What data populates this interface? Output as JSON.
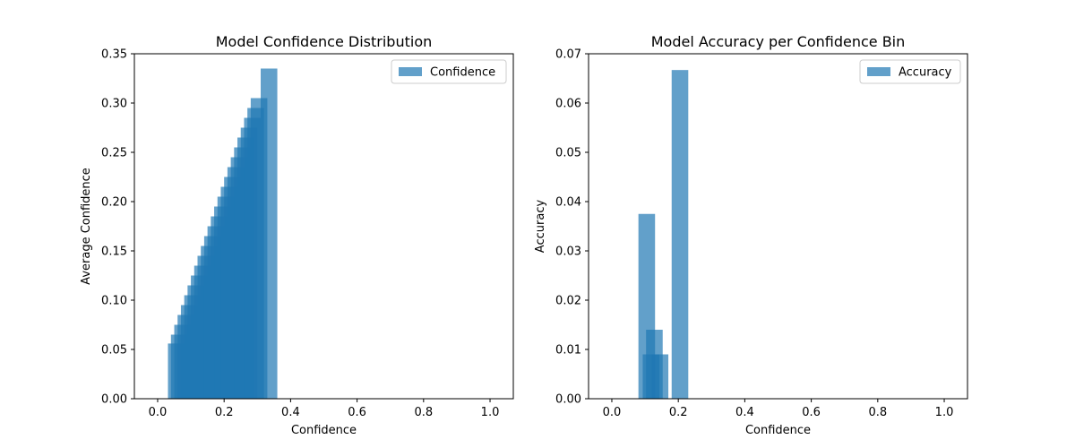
{
  "chart_data": [
    {
      "type": "bar",
      "title": "Model Confidence Distribution",
      "xlabel": "Confidence",
      "ylabel": "Average Confidence",
      "xlim": [
        -0.07,
        1.07
      ],
      "ylim": [
        0,
        0.35
      ],
      "xticks": [
        "0.0",
        "0.2",
        "0.4",
        "0.6",
        "0.8",
        "1.0"
      ],
      "xtick_values": [
        0.0,
        0.2,
        0.4,
        0.6,
        0.8,
        1.0
      ],
      "yticks": [
        "0.00",
        "0.05",
        "0.10",
        "0.15",
        "0.20",
        "0.25",
        "0.30",
        "0.35"
      ],
      "ytick_values": [
        0.0,
        0.05,
        0.1,
        0.15,
        0.2,
        0.25,
        0.3,
        0.35
      ],
      "legend_placement": "top-right",
      "color": "#1f77b4",
      "bar_alpha": 0.7,
      "bar_width": 0.05,
      "series": [
        {
          "name": "Confidence",
          "x": [
            0.056,
            0.065,
            0.075,
            0.085,
            0.095,
            0.105,
            0.115,
            0.125,
            0.135,
            0.145,
            0.155,
            0.165,
            0.175,
            0.185,
            0.195,
            0.205,
            0.215,
            0.225,
            0.235,
            0.245,
            0.255,
            0.265,
            0.275,
            0.285,
            0.295,
            0.305,
            0.335
          ],
          "values": [
            0.056,
            0.065,
            0.075,
            0.085,
            0.095,
            0.105,
            0.115,
            0.125,
            0.135,
            0.145,
            0.155,
            0.165,
            0.175,
            0.185,
            0.195,
            0.205,
            0.215,
            0.225,
            0.235,
            0.245,
            0.255,
            0.265,
            0.275,
            0.285,
            0.295,
            0.305,
            0.335
          ]
        }
      ]
    },
    {
      "type": "bar",
      "title": "Model Accuracy per Confidence Bin",
      "xlabel": "Confidence",
      "ylabel": "Accuracy",
      "xlim": [
        -0.07,
        1.07
      ],
      "ylim": [
        0,
        0.07
      ],
      "xticks": [
        "0.0",
        "0.2",
        "0.4",
        "0.6",
        "0.8",
        "1.0"
      ],
      "xtick_values": [
        0.0,
        0.2,
        0.4,
        0.6,
        0.8,
        1.0
      ],
      "yticks": [
        "0.00",
        "0.01",
        "0.02",
        "0.03",
        "0.04",
        "0.05",
        "0.06",
        "0.07"
      ],
      "ytick_values": [
        0.0,
        0.01,
        0.02,
        0.03,
        0.04,
        0.05,
        0.06,
        0.07
      ],
      "legend_placement": "top-right",
      "color": "#1f77b4",
      "bar_alpha": 0.7,
      "bar_width": 0.05,
      "series": [
        {
          "name": "Accuracy",
          "x": [
            0.105,
            0.118,
            0.128,
            0.145,
            0.205
          ],
          "values": [
            0.0375,
            0.009,
            0.014,
            0.009,
            0.0667
          ]
        }
      ]
    }
  ]
}
